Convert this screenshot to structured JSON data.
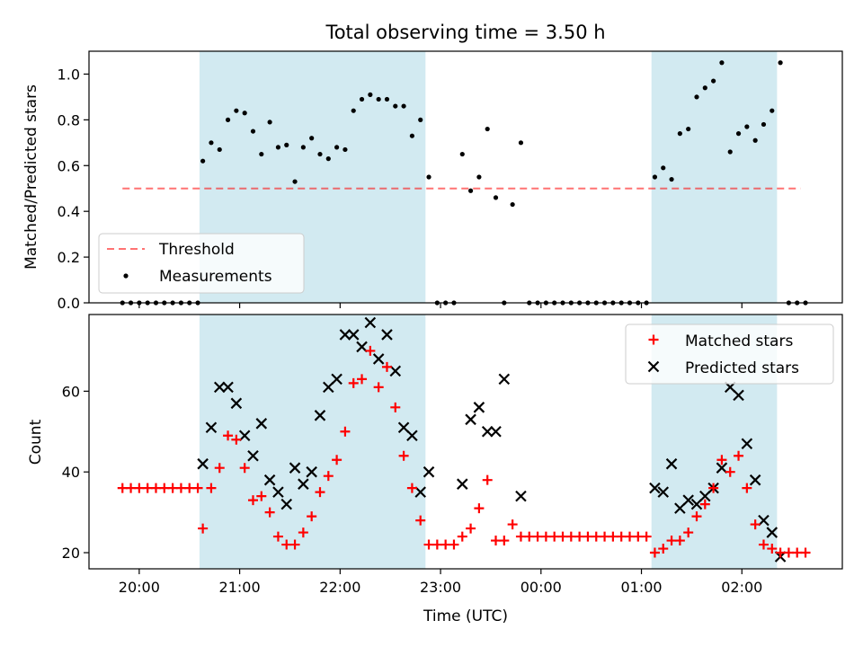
{
  "figure": {
    "title": "Total observing time = 3.50 h"
  },
  "colors": {
    "span": "#add8e6",
    "threshold": "#ff0000",
    "measurement": "#000000",
    "matched": "#ff0000",
    "predicted": "#000000"
  },
  "chart_data": [
    {
      "type": "scatter",
      "title": "Total observing time = 3.50 h",
      "xlabel": "",
      "ylabel": "Matched/Predicted stars",
      "ylim": [
        0,
        1.1
      ],
      "xlim": [
        "19:30",
        "03:00"
      ],
      "yticks": [
        "0.0",
        "0.2",
        "0.4",
        "0.6",
        "0.8",
        "1.0"
      ],
      "highlight_spans": [
        [
          "20:36",
          "22:51"
        ],
        [
          "01:06",
          "02:21"
        ]
      ],
      "threshold": {
        "name": "Threshold",
        "value": 0.5,
        "x_range": [
          "19:50",
          "02:35"
        ],
        "style": "dashed"
      },
      "legend": {
        "location": "lower-left",
        "entries": [
          "Threshold",
          "Measurements"
        ]
      },
      "series": [
        {
          "name": "Measurements",
          "marker": "dot",
          "x": [
            "19:50",
            "19:55",
            "20:00",
            "20:05",
            "20:10",
            "20:15",
            "20:20",
            "20:25",
            "20:30",
            "20:35",
            "20:38",
            "20:43",
            "20:48",
            "20:53",
            "20:58",
            "21:03",
            "21:08",
            "21:13",
            "21:18",
            "21:23",
            "21:28",
            "21:33",
            "21:38",
            "21:43",
            "21:48",
            "21:53",
            "21:58",
            "22:03",
            "22:08",
            "22:13",
            "22:18",
            "22:23",
            "22:28",
            "22:33",
            "22:38",
            "22:43",
            "22:48",
            "22:53",
            "22:58",
            "23:03",
            "23:08",
            "23:13",
            "23:18",
            "23:23",
            "23:28",
            "23:33",
            "23:38",
            "23:43",
            "23:48",
            "23:53",
            "23:58",
            "00:03",
            "00:08",
            "00:13",
            "00:18",
            "00:23",
            "00:28",
            "00:33",
            "00:38",
            "00:43",
            "00:48",
            "00:53",
            "00:58",
            "01:03",
            "01:08",
            "01:13",
            "01:18",
            "01:23",
            "01:28",
            "01:33",
            "01:38",
            "01:43",
            "01:48",
            "01:53",
            "01:58",
            "02:03",
            "02:08",
            "02:13",
            "02:18",
            "02:23",
            "02:28",
            "02:33",
            "02:38"
          ],
          "values": [
            0,
            0,
            0,
            0,
            0,
            0,
            0,
            0,
            0,
            0,
            0.62,
            0.7,
            0.67,
            0.8,
            0.84,
            0.83,
            0.75,
            0.65,
            0.79,
            0.68,
            0.69,
            0.53,
            0.68,
            0.72,
            0.65,
            0.63,
            0.68,
            0.67,
            0.84,
            0.89,
            0.91,
            0.89,
            0.89,
            0.86,
            0.86,
            0.73,
            0.8,
            0.55,
            0,
            0,
            0,
            0.65,
            0.49,
            0.55,
            0.76,
            0.46,
            0,
            0.43,
            0.7,
            0,
            0,
            0,
            0,
            0,
            0,
            0,
            0,
            0,
            0,
            0,
            0,
            0,
            0,
            0,
            0.55,
            0.59,
            0.54,
            0.74,
            0.76,
            0.9,
            0.94,
            0.97,
            1.05,
            0.66,
            0.74,
            0.77,
            0.71,
            0.78,
            0.84,
            1.05,
            0,
            0,
            0
          ]
        }
      ]
    },
    {
      "type": "scatter",
      "xlabel": "Time (UTC)",
      "ylabel": "Count",
      "ylim": [
        16,
        79
      ],
      "xlim": [
        "19:30",
        "03:00"
      ],
      "yticks": [
        "20",
        "40",
        "60"
      ],
      "xticks": [
        "20:00",
        "21:00",
        "22:00",
        "23:00",
        "00:00",
        "01:00",
        "02:00"
      ],
      "highlight_spans": [
        [
          "20:36",
          "22:51"
        ],
        [
          "01:06",
          "02:21"
        ]
      ],
      "legend": {
        "location": "top-right",
        "entries": [
          "Matched stars",
          "Predicted stars"
        ]
      },
      "series": [
        {
          "name": "Matched stars",
          "marker": "plus",
          "x": [
            "19:50",
            "19:55",
            "20:00",
            "20:05",
            "20:10",
            "20:15",
            "20:20",
            "20:25",
            "20:30",
            "20:35",
            "20:38",
            "20:43",
            "20:48",
            "20:53",
            "20:58",
            "21:03",
            "21:08",
            "21:13",
            "21:18",
            "21:23",
            "21:28",
            "21:33",
            "21:38",
            "21:43",
            "21:48",
            "21:53",
            "21:58",
            "22:03",
            "22:08",
            "22:13",
            "22:18",
            "22:23",
            "22:28",
            "22:33",
            "22:38",
            "22:43",
            "22:48",
            "22:53",
            "22:58",
            "23:03",
            "23:08",
            "23:13",
            "23:18",
            "23:23",
            "23:28",
            "23:33",
            "23:38",
            "23:43",
            "23:48",
            "23:53",
            "23:58",
            "00:03",
            "00:08",
            "00:13",
            "00:18",
            "00:23",
            "00:28",
            "00:33",
            "00:38",
            "00:43",
            "00:48",
            "00:53",
            "00:58",
            "01:03",
            "01:08",
            "01:13",
            "01:18",
            "01:23",
            "01:28",
            "01:33",
            "01:38",
            "01:43",
            "01:48",
            "01:53",
            "01:58",
            "02:03",
            "02:08",
            "02:13",
            "02:18",
            "02:23",
            "02:28",
            "02:33",
            "02:38"
          ],
          "values": [
            36,
            36,
            36,
            36,
            36,
            36,
            36,
            36,
            36,
            36,
            26,
            36,
            41,
            49,
            48,
            41,
            33,
            34,
            30,
            24,
            22,
            22,
            25,
            29,
            35,
            39,
            43,
            50,
            62,
            63,
            70,
            61,
            66,
            56,
            44,
            36,
            28,
            22,
            22,
            22,
            22,
            24,
            26,
            31,
            38,
            23,
            23,
            27,
            24,
            24,
            24,
            24,
            24,
            24,
            24,
            24,
            24,
            24,
            24,
            24,
            24,
            24,
            24,
            24,
            20,
            21,
            23,
            23,
            25,
            29,
            32,
            36,
            43,
            40,
            44,
            36,
            27,
            22,
            21,
            20,
            20,
            20,
            20
          ]
        },
        {
          "name": "Predicted stars",
          "marker": "x",
          "x": [
            "20:38",
            "20:43",
            "20:48",
            "20:53",
            "20:58",
            "21:03",
            "21:08",
            "21:13",
            "21:18",
            "21:23",
            "21:28",
            "21:33",
            "21:38",
            "21:43",
            "21:48",
            "21:53",
            "21:58",
            "22:03",
            "22:08",
            "22:13",
            "22:18",
            "22:23",
            "22:28",
            "22:33",
            "22:38",
            "22:43",
            "22:48",
            "22:53",
            "23:13",
            "23:18",
            "23:23",
            "23:28",
            "23:33",
            "23:38",
            "23:48",
            "01:08",
            "01:13",
            "01:18",
            "01:23",
            "01:28",
            "01:33",
            "01:38",
            "01:43",
            "01:48",
            "01:53",
            "01:58",
            "02:03",
            "02:08",
            "02:13",
            "02:18",
            "02:23"
          ],
          "values": [
            42,
            51,
            61,
            61,
            57,
            49,
            44,
            52,
            38,
            35,
            32,
            41,
            37,
            40,
            54,
            61,
            63,
            74,
            74,
            71,
            77,
            68,
            74,
            65,
            51,
            49,
            35,
            40,
            37,
            53,
            56,
            50,
            50,
            63,
            34,
            36,
            35,
            42,
            31,
            33,
            32,
            34,
            36,
            41,
            61,
            59,
            47,
            38,
            28,
            25,
            19
          ]
        }
      ]
    }
  ]
}
